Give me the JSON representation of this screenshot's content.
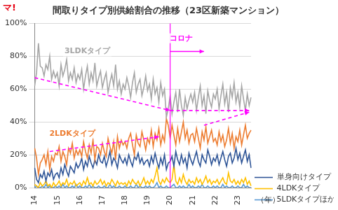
{
  "chart_data": {
    "type": "line",
    "title": "間取りタイプ別供給割合の推移（23区新築マンション）",
    "logo": "マ!",
    "xlabel": "（年）",
    "categories": [
      "14",
      null,
      null,
      null,
      null,
      null,
      null,
      null,
      null,
      null,
      null,
      null,
      "15",
      null,
      null,
      null,
      null,
      null,
      null,
      null,
      null,
      null,
      null,
      null,
      "16",
      null,
      null,
      null,
      null,
      null,
      null,
      null,
      null,
      null,
      null,
      null,
      "17",
      null,
      null,
      null,
      null,
      null,
      null,
      null,
      null,
      null,
      null,
      null,
      "18",
      null,
      null,
      null,
      null,
      null,
      null,
      null,
      null,
      null,
      null,
      null,
      "19",
      null,
      null,
      null,
      null,
      null,
      null,
      null,
      null,
      null,
      null,
      null,
      "20",
      null,
      null,
      null,
      null,
      null,
      null,
      null,
      null,
      null,
      null,
      null,
      "21",
      null,
      null,
      null,
      null,
      null,
      null,
      null,
      null,
      null,
      null,
      null,
      "22",
      null,
      null,
      null,
      null,
      null,
      null,
      null,
      null,
      null,
      null,
      null,
      "23",
      null,
      null,
      null,
      null,
      null,
      null,
      null
    ],
    "series": [
      {
        "name": "3LDKタイプ",
        "color": "#a6a6a6",
        "values": [
          62,
          70,
          88,
          74,
          73,
          68,
          75,
          72,
          80,
          66,
          71,
          67,
          70,
          62,
          75,
          68,
          72,
          78,
          65,
          70,
          66,
          73,
          64,
          69,
          66,
          72,
          60,
          68,
          74,
          63,
          70,
          65,
          76,
          62,
          67,
          71,
          61,
          66,
          70,
          58,
          64,
          69,
          62,
          75,
          60,
          65,
          57,
          63,
          60,
          67,
          62,
          55,
          64,
          70,
          58,
          63,
          66,
          56,
          61,
          68,
          59,
          63,
          54,
          66,
          57,
          61,
          52,
          64,
          56,
          60,
          43,
          48,
          56,
          45,
          52,
          58,
          46,
          60,
          50,
          44,
          55,
          48,
          53,
          57,
          52,
          58,
          47,
          55,
          62,
          50,
          56,
          45,
          59,
          53,
          49,
          57,
          54,
          60,
          48,
          56,
          63,
          51,
          58,
          46,
          61,
          55,
          64,
          52,
          58,
          49,
          62,
          54,
          47,
          57,
          50,
          55
        ]
      },
      {
        "name": "2LDKタイプ",
        "color": "#ed7d31",
        "values": [
          24,
          18,
          8,
          15,
          17,
          20,
          14,
          22,
          11,
          19,
          16,
          21,
          20,
          25,
          16,
          22,
          19,
          14,
          24,
          21,
          27,
          18,
          23,
          20,
          23,
          19,
          28,
          22,
          18,
          26,
          21,
          29,
          17,
          25,
          24,
          20,
          27,
          22,
          19,
          30,
          25,
          21,
          28,
          17,
          31,
          24,
          29,
          26,
          28,
          24,
          30,
          33,
          26,
          20,
          32,
          27,
          25,
          34,
          29,
          23,
          30,
          27,
          35,
          25,
          33,
          29,
          36,
          26,
          32,
          28,
          42,
          38,
          30,
          38,
          32,
          26,
          36,
          28,
          34,
          40,
          30,
          35,
          27,
          32,
          33,
          28,
          36,
          30,
          24,
          34,
          29,
          37,
          27,
          31,
          35,
          28,
          30,
          26,
          34,
          28,
          32,
          25,
          29,
          36,
          27,
          33,
          24,
          31,
          28,
          35,
          26,
          32,
          38,
          30,
          33,
          35
        ]
      },
      {
        "name": "単身向けタイプ",
        "color": "#2f5597",
        "values": [
          12,
          5,
          3,
          8,
          6,
          10,
          4,
          9,
          7,
          11,
          5,
          8,
          9,
          6,
          12,
          8,
          14,
          10,
          7,
          13,
          11,
          9,
          15,
          12,
          14,
          18,
          11,
          16,
          13,
          19,
          15,
          12,
          17,
          14,
          20,
          16,
          15,
          19,
          13,
          17,
          22,
          14,
          18,
          16,
          12,
          20,
          17,
          15,
          18,
          14,
          20,
          16,
          13,
          19,
          17,
          21,
          15,
          18,
          14,
          16,
          17,
          13,
          19,
          15,
          21,
          16,
          12,
          18,
          14,
          20,
          11,
          15,
          16,
          19,
          13,
          22,
          17,
          14,
          20,
          15,
          18,
          12,
          21,
          17,
          14,
          18,
          22,
          16,
          13,
          20,
          17,
          15,
          23,
          19,
          14,
          18,
          16,
          20,
          14,
          18,
          22,
          17,
          13,
          19,
          21,
          15,
          18,
          24,
          17,
          21,
          15,
          19,
          23,
          16,
          20,
          12
        ]
      },
      {
        "name": "4LDKタイプ",
        "color": "#ffc000",
        "values": [
          2,
          1,
          0,
          3,
          1,
          2,
          4,
          1,
          2,
          0,
          3,
          1,
          2,
          4,
          1,
          3,
          2,
          5,
          1,
          3,
          2,
          4,
          1,
          2,
          3,
          1,
          4,
          2,
          6,
          2,
          3,
          1,
          4,
          2,
          3,
          5,
          2,
          4,
          1,
          3,
          2,
          5,
          3,
          1,
          4,
          2,
          3,
          2,
          3,
          1,
          4,
          2,
          5,
          3,
          2,
          4,
          1,
          3,
          6,
          2,
          4,
          2,
          5,
          3,
          7,
          12,
          4,
          2,
          5,
          3,
          6,
          4,
          3,
          5,
          14,
          4,
          2,
          6,
          3,
          8,
          4,
          2,
          5,
          3,
          4,
          2,
          6,
          3,
          5,
          2,
          4,
          7,
          3,
          5,
          2,
          4,
          3,
          5,
          2,
          4,
          6,
          3,
          2,
          9,
          4,
          3,
          5,
          2,
          4,
          2,
          5,
          3,
          6,
          2,
          4,
          1
        ]
      },
      {
        "name": "5LDKタイプほか",
        "color": "#5b9bd5",
        "values": [
          0,
          1,
          0,
          0,
          1,
          0,
          2,
          0,
          1,
          0,
          0,
          1,
          0,
          1,
          0,
          2,
          0,
          1,
          0,
          0,
          1,
          0,
          2,
          0,
          1,
          0,
          0,
          1,
          0,
          2,
          0,
          1,
          0,
          0,
          1,
          0,
          0,
          1,
          0,
          0,
          2,
          0,
          1,
          0,
          0,
          1,
          0,
          0,
          1,
          0,
          0,
          1,
          0,
          0,
          2,
          0,
          1,
          0,
          0,
          1,
          0,
          1,
          0,
          0,
          1,
          3,
          0,
          1,
          0,
          0,
          1,
          0,
          0,
          1,
          2,
          0,
          0,
          1,
          0,
          1,
          0,
          0,
          2,
          0,
          1,
          0,
          0,
          1,
          0,
          2,
          0,
          0,
          1,
          0,
          0,
          1,
          0,
          1,
          0,
          0,
          2,
          0,
          1,
          0,
          0,
          1,
          0,
          0,
          1,
          0,
          0,
          2,
          0,
          1,
          0,
          0
        ]
      }
    ],
    "ylim": [
      0,
      100
    ],
    "yticks": [
      {
        "value": 0,
        "label": "0%"
      },
      {
        "value": 20,
        "label": "20%"
      },
      {
        "value": 40,
        "label": "40%"
      },
      {
        "value": 60,
        "label": "60%"
      },
      {
        "value": 80,
        "label": "80%"
      },
      {
        "value": 100,
        "label": "100%"
      }
    ],
    "grid": true,
    "legend": "right",
    "annotations": [
      {
        "text": "3LDKタイプ",
        "x": 28,
        "y": 83,
        "color": "#a6a6a6"
      },
      {
        "text": "2LDKタイプ",
        "x": 20,
        "y": 33,
        "color": "#ed7d31"
      },
      {
        "text": "コロナ",
        "x": 78,
        "y": 91,
        "color": "#ff00ff"
      }
    ],
    "vlines": [
      {
        "x": 72,
        "color": "#ff00ff"
      }
    ],
    "arrows": [
      {
        "from": [
          0,
          67
        ],
        "to": [
          72,
          47
        ],
        "color": "#ff00ff",
        "line_style": "dashed"
      },
      {
        "from": [
          72,
          47
        ],
        "to": [
          114,
          47
        ],
        "color": "#ff00ff",
        "line_style": "dashed"
      },
      {
        "from": [
          8,
          22
        ],
        "to": [
          66,
          31
        ],
        "color": "#ff00ff",
        "line_style": "dashed"
      },
      {
        "from": [
          90,
          38
        ],
        "to": [
          114,
          46
        ],
        "color": "#ff00ff",
        "line_style": "dashed"
      },
      {
        "from": [
          72,
          83
        ],
        "to": [
          90,
          83
        ],
        "color": "#ff00ff",
        "line_style": "solid"
      }
    ]
  }
}
